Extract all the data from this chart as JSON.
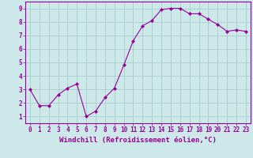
{
  "x": [
    0,
    1,
    2,
    3,
    4,
    5,
    6,
    7,
    8,
    9,
    10,
    11,
    12,
    13,
    14,
    15,
    16,
    17,
    18,
    19,
    20,
    21,
    22,
    23
  ],
  "y": [
    3.0,
    1.8,
    1.8,
    2.6,
    3.1,
    3.4,
    1.0,
    1.4,
    2.4,
    3.1,
    4.8,
    6.6,
    7.7,
    8.1,
    8.9,
    9.0,
    9.0,
    8.6,
    8.6,
    8.2,
    7.8,
    7.3,
    7.4,
    7.3
  ],
  "line_color": "#990099",
  "marker": "D",
  "marker_size": 2.0,
  "bg_color": "#cce8e8",
  "grid_color": "#aacccc",
  "xlabel": "Windchill (Refroidissement éolien,°C)",
  "xlabel_color": "#990099",
  "ylabel_ticks": [
    1,
    2,
    3,
    4,
    5,
    6,
    7,
    8,
    9
  ],
  "xticks": [
    0,
    1,
    2,
    3,
    4,
    5,
    6,
    7,
    8,
    9,
    10,
    11,
    12,
    13,
    14,
    15,
    16,
    17,
    18,
    19,
    20,
    21,
    22,
    23
  ],
  "xlim": [
    -0.5,
    23.5
  ],
  "ylim": [
    0.5,
    9.5
  ],
  "tick_fontsize": 5.5,
  "xlabel_fontsize": 6.5
}
